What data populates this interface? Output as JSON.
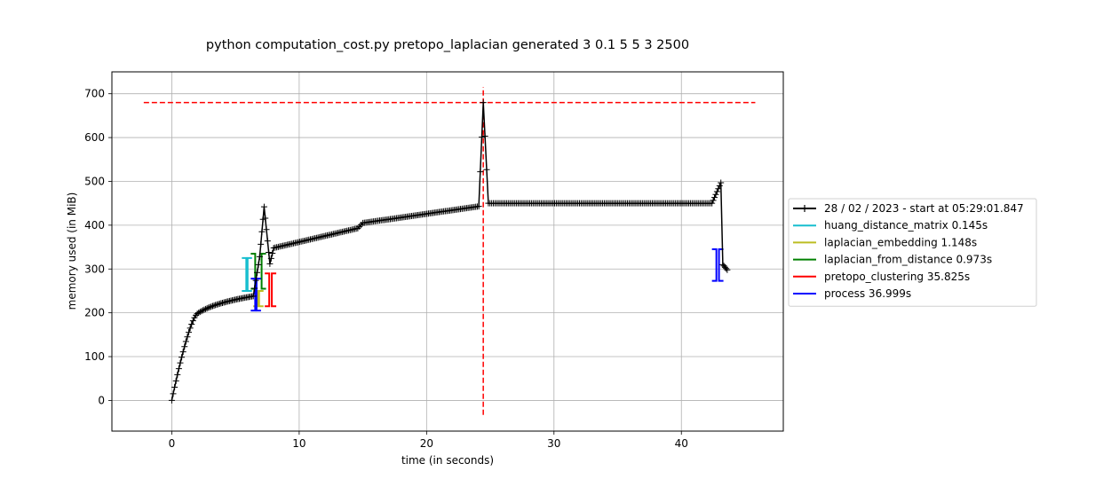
{
  "chart_data": {
    "type": "line",
    "title": "python computation_cost.py pretopo_laplacian generated 3 0.1 5 5 3 2500",
    "xlabel": "time (in seconds)",
    "ylabel": "memory used (in MiB)",
    "xlim": [
      -4.7,
      48.0
    ],
    "ylim": [
      -70,
      750
    ],
    "xticks": [
      0,
      10,
      20,
      30,
      40
    ],
    "yticks": [
      0,
      100,
      200,
      300,
      400,
      500,
      600,
      700
    ],
    "xtick_labels": [
      "0",
      "10",
      "20",
      "30",
      "40"
    ],
    "ytick_labels": [
      "0",
      "100",
      "200",
      "300",
      "400",
      "500",
      "600",
      "700"
    ],
    "grid": true,
    "legend_position": "right-outside",
    "memory_series": {
      "name": "28 / 02 / 2023 - start at 05:29:01.847",
      "color": "#000000",
      "marker": "+",
      "segments": [
        {
          "x0": 0.0,
          "x1": 2.0,
          "y0": 0,
          "y1": 198,
          "shape": "rise",
          "step": 0.11
        },
        {
          "x0": 2.0,
          "x1": 6.4,
          "y0": 198,
          "y1": 238,
          "shape": "log",
          "step": 0.11
        },
        {
          "x0": 6.4,
          "x1": 6.9,
          "y0": 238,
          "y1": 328,
          "shape": "linear",
          "step": 0.1
        },
        {
          "x0": 6.9,
          "x1": 7.25,
          "y0": 328,
          "y1": 442,
          "shape": "linear",
          "step": 0.09
        },
        {
          "x0": 7.25,
          "x1": 7.7,
          "y0": 442,
          "y1": 312,
          "shape": "linear",
          "step": 0.09
        },
        {
          "x0": 7.7,
          "x1": 8.0,
          "y0": 312,
          "y1": 348,
          "shape": "linear",
          "step": 0.1
        },
        {
          "x0": 8.0,
          "x1": 14.6,
          "y0": 348,
          "y1": 393,
          "shape": "linear",
          "step": 0.12
        },
        {
          "x0": 14.6,
          "x1": 15.0,
          "y0": 393,
          "y1": 405,
          "shape": "linear",
          "step": 0.12
        },
        {
          "x0": 15.0,
          "x1": 24.1,
          "y0": 405,
          "y1": 443,
          "shape": "linear",
          "step": 0.12
        },
        {
          "x0": 24.1,
          "x1": 24.45,
          "y0": 443,
          "y1": 680,
          "shape": "linear",
          "step": 0.12
        },
        {
          "x0": 24.45,
          "x1": 24.85,
          "y0": 680,
          "y1": 450,
          "shape": "linear",
          "step": 0.13
        },
        {
          "x0": 24.85,
          "x1": 42.4,
          "y0": 450,
          "y1": 450,
          "shape": "linear",
          "step": 0.13
        },
        {
          "x0": 42.4,
          "x1": 43.0,
          "y0": 450,
          "y1": 490,
          "shape": "linear",
          "step": 0.1
        },
        {
          "x0": 43.0,
          "x1": 43.1,
          "y0": 490,
          "y1": 497,
          "shape": "linear",
          "step": 0.1
        },
        {
          "x0": 43.1,
          "x1": 43.25,
          "y0": 497,
          "y1": 310,
          "shape": "linear",
          "step": 0.15
        },
        {
          "x0": 43.25,
          "x1": 43.6,
          "y0": 310,
          "y1": 298,
          "shape": "linear",
          "step": 0.1
        }
      ]
    },
    "function_series": [
      {
        "name": "huang_distance_matrix 0.145s",
        "color": "#17becf",
        "brackets": [
          {
            "t_start": 5.5,
            "t_end": 6.3,
            "mem_start": 250,
            "mem_end": 325
          }
        ]
      },
      {
        "name": "laplacian_embedding 1.148s",
        "color": "#bcbd22",
        "brackets": [
          {
            "t_start": 6.4,
            "t_end": 7.2,
            "mem_start": 215,
            "mem_end": 250
          }
        ]
      },
      {
        "name": "laplacian_from_distance 0.973s",
        "color": "#008000",
        "brackets": [
          {
            "t_start": 6.2,
            "t_end": 7.4,
            "mem_start": 255,
            "mem_end": 335
          }
        ]
      },
      {
        "name": "pretopo_clustering 35.825s",
        "color": "#ff0000",
        "brackets": [
          {
            "t_start": 7.3,
            "t_end": 8.2,
            "mem_start": 215,
            "mem_end": 290
          }
        ]
      },
      {
        "name": "process 36.999s",
        "color": "#0000ff",
        "brackets": [
          {
            "t_start": 6.2,
            "t_end": 7.0,
            "mem_start": 205,
            "mem_end": 278
          },
          {
            "t_start": 42.4,
            "t_end": 43.3,
            "mem_start": 273,
            "mem_end": 345
          }
        ]
      }
    ],
    "peak_lines": {
      "color": "#ff0000",
      "hline": {
        "y": 680,
        "x0": -2.2,
        "x1": 45.8
      },
      "vline": {
        "x": 24.45,
        "y0": -33,
        "y1": 715
      }
    }
  }
}
